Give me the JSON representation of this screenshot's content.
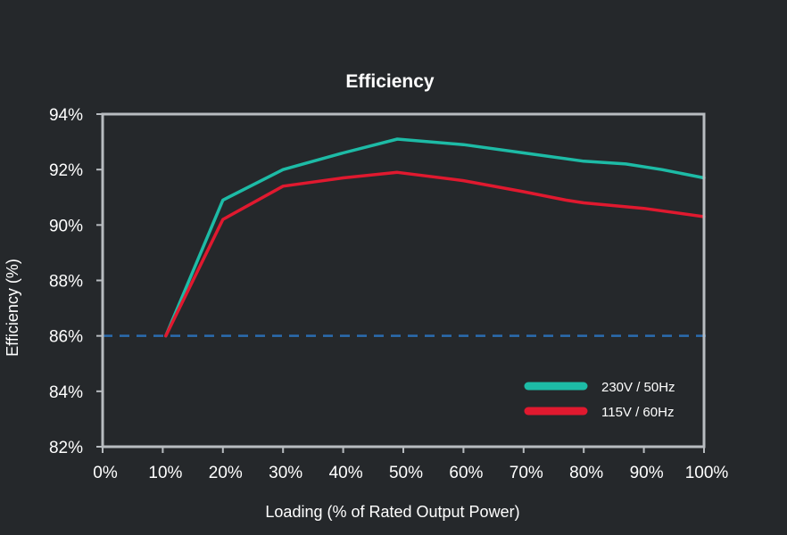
{
  "chart_data": {
    "type": "line",
    "title": "Efficiency",
    "xlabel": "Loading (% of Rated Output Power)",
    "ylabel": "Efficiency (%)",
    "xlim": [
      0,
      100
    ],
    "ylim": [
      82,
      94
    ],
    "x_ticks": [
      "0%",
      "10%",
      "20%",
      "30%",
      "40%",
      "50%",
      "60%",
      "70%",
      "80%",
      "90%",
      "100%"
    ],
    "x_tick_values": [
      0,
      10,
      20,
      30,
      40,
      50,
      60,
      70,
      80,
      90,
      100
    ],
    "y_ticks": [
      "82%",
      "84%",
      "86%",
      "88%",
      "90%",
      "92%",
      "94%"
    ],
    "y_tick_values": [
      82,
      84,
      86,
      88,
      90,
      92,
      94
    ],
    "grid": false,
    "legend_position": "bottom-right",
    "series": [
      {
        "name": "230V / 50Hz",
        "color": "#1dbba6",
        "x": [
          10.5,
          20,
          30,
          40,
          49,
          60,
          70,
          80,
          87,
          93,
          100
        ],
        "y": [
          86.0,
          90.9,
          92.0,
          92.6,
          93.1,
          92.9,
          92.6,
          92.3,
          92.2,
          92.0,
          91.7
        ]
      },
      {
        "name": "115V / 60Hz",
        "color": "#e0192f",
        "x": [
          10.5,
          20,
          30,
          40,
          49,
          60,
          70,
          77,
          80,
          90,
          100
        ],
        "y": [
          86.0,
          90.2,
          91.4,
          91.7,
          91.9,
          91.6,
          91.2,
          90.9,
          90.8,
          90.6,
          90.3
        ]
      }
    ],
    "reference_line": {
      "y": 86,
      "style": "dashed",
      "color": "#2b6cb0"
    },
    "colors": {
      "background": "#25282b",
      "frame": "#b8bcc0",
      "text": "#ffffff"
    }
  }
}
